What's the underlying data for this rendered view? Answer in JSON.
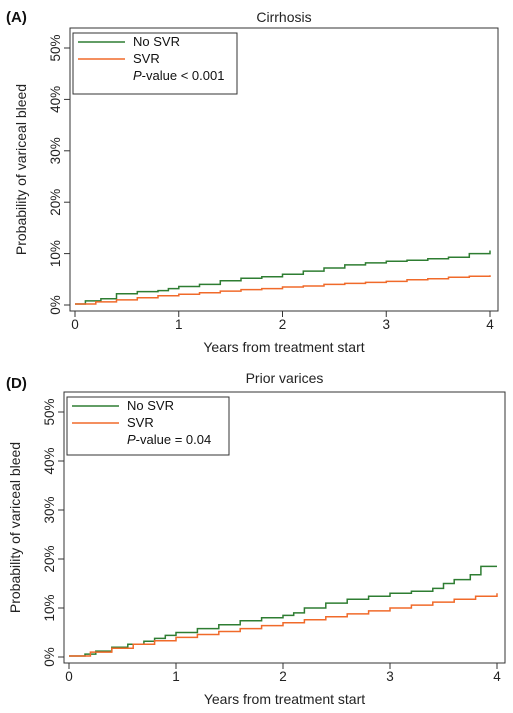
{
  "chart_data": [
    {
      "type": "line",
      "panel": "(A)",
      "title": "Cirrhosis",
      "xlabel": "Years from treatment start",
      "ylabel": "Probability of variceal bleed",
      "xlim": [
        0,
        4
      ],
      "ylim": [
        0,
        0.5
      ],
      "x_ticks": [
        0,
        1,
        2,
        3,
        4
      ],
      "y_ticks": [
        0,
        0.1,
        0.2,
        0.3,
        0.4,
        0.5
      ],
      "y_tick_labels": [
        "0%",
        "10%",
        "20%",
        "30%",
        "40%",
        "50%"
      ],
      "grid": false,
      "legend_position": "top-left",
      "legend_title": "",
      "annotation": {
        "italic": "P",
        "rest": "-value < 0.001"
      },
      "series": [
        {
          "name": "No SVR",
          "color": "#2e7d32",
          "x": [
            0,
            0.1,
            0.25,
            0.4,
            0.6,
            0.8,
            0.9,
            1.0,
            1.2,
            1.4,
            1.6,
            1.8,
            2.0,
            2.2,
            2.4,
            2.6,
            2.8,
            3.0,
            3.2,
            3.4,
            3.6,
            3.8,
            4.0
          ],
          "y": [
            0.002,
            0.008,
            0.012,
            0.022,
            0.026,
            0.028,
            0.032,
            0.036,
            0.04,
            0.047,
            0.052,
            0.055,
            0.06,
            0.066,
            0.072,
            0.078,
            0.082,
            0.085,
            0.087,
            0.09,
            0.093,
            0.1,
            0.106
          ]
        },
        {
          "name": "SVR",
          "color": "#f06a2a",
          "x": [
            0,
            0.2,
            0.4,
            0.6,
            0.8,
            1.0,
            1.2,
            1.4,
            1.6,
            1.8,
            2.0,
            2.2,
            2.4,
            2.6,
            2.8,
            3.0,
            3.2,
            3.4,
            3.6,
            3.8,
            4.0
          ],
          "y": [
            0.002,
            0.006,
            0.01,
            0.014,
            0.018,
            0.021,
            0.024,
            0.027,
            0.03,
            0.032,
            0.035,
            0.037,
            0.04,
            0.042,
            0.044,
            0.046,
            0.049,
            0.051,
            0.054,
            0.056,
            0.058
          ]
        }
      ]
    },
    {
      "type": "line",
      "panel": "(D)",
      "title": "Prior varices",
      "xlabel": "Years from treatment start",
      "ylabel": "Probability of variceal bleed",
      "xlim": [
        0,
        4
      ],
      "ylim": [
        0,
        0.5
      ],
      "x_ticks": [
        0,
        1,
        2,
        3,
        4
      ],
      "y_ticks": [
        0,
        0.1,
        0.2,
        0.3,
        0.4,
        0.5
      ],
      "y_tick_labels": [
        "0%",
        "10%",
        "20%",
        "30%",
        "40%",
        "50%"
      ],
      "grid": false,
      "legend_position": "top-left",
      "legend_title": "",
      "annotation": {
        "italic": "P",
        "rest": "-value = 0.04"
      },
      "series": [
        {
          "name": "No SVR",
          "color": "#2e7d32",
          "x": [
            0,
            0.15,
            0.25,
            0.4,
            0.55,
            0.7,
            0.8,
            0.9,
            1.0,
            1.2,
            1.4,
            1.6,
            1.8,
            2.0,
            2.1,
            2.2,
            2.4,
            2.6,
            2.8,
            3.0,
            3.2,
            3.4,
            3.5,
            3.6,
            3.75,
            3.85,
            4.0
          ],
          "y": [
            0.002,
            0.006,
            0.012,
            0.02,
            0.026,
            0.032,
            0.038,
            0.044,
            0.05,
            0.058,
            0.066,
            0.074,
            0.08,
            0.085,
            0.09,
            0.1,
            0.11,
            0.118,
            0.124,
            0.13,
            0.134,
            0.14,
            0.15,
            0.158,
            0.168,
            0.185,
            0.185
          ]
        },
        {
          "name": "SVR",
          "color": "#f06a2a",
          "x": [
            0,
            0.2,
            0.4,
            0.6,
            0.8,
            1.0,
            1.2,
            1.4,
            1.6,
            1.8,
            2.0,
            2.2,
            2.4,
            2.6,
            2.8,
            3.0,
            3.2,
            3.4,
            3.6,
            3.8,
            4.0
          ],
          "y": [
            0.002,
            0.01,
            0.018,
            0.026,
            0.033,
            0.04,
            0.046,
            0.052,
            0.058,
            0.064,
            0.07,
            0.076,
            0.082,
            0.088,
            0.094,
            0.1,
            0.106,
            0.112,
            0.118,
            0.124,
            0.13
          ]
        }
      ]
    }
  ]
}
